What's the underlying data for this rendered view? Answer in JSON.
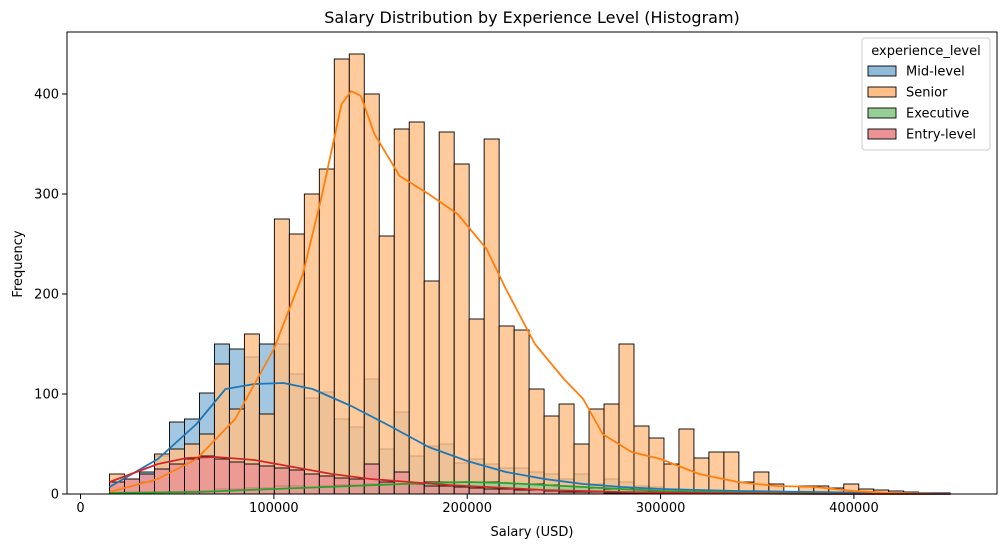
{
  "chart_data": {
    "type": "histogram",
    "title": "Salary Distribution by Experience Level (Histogram)",
    "xlabel": "Salary (USD)",
    "ylabel": "Frequency",
    "xlim": [
      -7000,
      474000
    ],
    "ylim": [
      0,
      462
    ],
    "xticks": [
      0,
      100000,
      200000,
      300000,
      400000
    ],
    "xtick_labels": [
      "0",
      "100000",
      "200000",
      "300000",
      "400000"
    ],
    "yticks": [
      0,
      100,
      200,
      300,
      400
    ],
    "ytick_labels": [
      "0",
      "100",
      "200",
      "300",
      "400"
    ],
    "grid": false,
    "legend": {
      "title": "experience_level",
      "placement": "top-right"
    },
    "bins": {
      "start": 15000,
      "width": 7750,
      "count": 56
    },
    "series": [
      {
        "name": "Mid-level",
        "color": "#1f77b4",
        "fill": "#8fbbd9",
        "counts": [
          7,
          12,
          22,
          38,
          72,
          75,
          101,
          150,
          145,
          137,
          150,
          150,
          120,
          96,
          102,
          75,
          67,
          115,
          45,
          82,
          38,
          48,
          50,
          31,
          35,
          30,
          26,
          26,
          22,
          20,
          15,
          20,
          10,
          15,
          12,
          8,
          7,
          5,
          4,
          3,
          3,
          2,
          2,
          2,
          1,
          1,
          1,
          1,
          1,
          1,
          1,
          1,
          1,
          1,
          1,
          1
        ],
        "kde": [
          [
            15000,
            7
          ],
          [
            40000,
            35
          ],
          [
            60000,
            70
          ],
          [
            75000,
            105
          ],
          [
            90000,
            110
          ],
          [
            105000,
            111
          ],
          [
            120000,
            105
          ],
          [
            140000,
            88
          ],
          [
            160000,
            68
          ],
          [
            180000,
            47
          ],
          [
            200000,
            33
          ],
          [
            220000,
            22
          ],
          [
            240000,
            15
          ],
          [
            260000,
            10
          ],
          [
            280000,
            7
          ],
          [
            300000,
            5
          ],
          [
            340000,
            3
          ],
          [
            380000,
            2
          ],
          [
            420000,
            1
          ],
          [
            450000,
            1
          ]
        ]
      },
      {
        "name": "Senior",
        "color": "#ff7f0e",
        "fill": "#ffbf86",
        "counts": [
          20,
          15,
          12,
          40,
          45,
          50,
          60,
          130,
          85,
          160,
          80,
          275,
          260,
          300,
          325,
          435,
          440,
          400,
          258,
          365,
          372,
          213,
          362,
          330,
          175,
          355,
          168,
          164,
          105,
          78,
          90,
          50,
          85,
          90,
          150,
          68,
          56,
          30,
          65,
          36,
          42,
          42,
          12,
          22,
          10,
          2,
          8,
          8,
          6,
          10,
          5,
          4,
          3,
          2,
          0,
          1
        ],
        "kde": [
          [
            15000,
            2
          ],
          [
            40000,
            15
          ],
          [
            60000,
            35
          ],
          [
            80000,
            75
          ],
          [
            100000,
            145
          ],
          [
            115000,
            220
          ],
          [
            125000,
            300
          ],
          [
            135000,
            390
          ],
          [
            140000,
            403
          ],
          [
            145000,
            398
          ],
          [
            152000,
            360
          ],
          [
            165000,
            318
          ],
          [
            180000,
            300
          ],
          [
            195000,
            280
          ],
          [
            210000,
            245
          ],
          [
            220000,
            205
          ],
          [
            235000,
            150
          ],
          [
            250000,
            115
          ],
          [
            260000,
            95
          ],
          [
            270000,
            60
          ],
          [
            285000,
            42
          ],
          [
            300000,
            35
          ],
          [
            320000,
            20
          ],
          [
            340000,
            12
          ],
          [
            360000,
            8
          ],
          [
            380000,
            7
          ],
          [
            400000,
            3
          ],
          [
            420000,
            1
          ],
          [
            450000,
            0
          ]
        ]
      },
      {
        "name": "Executive",
        "color": "#2ca02c",
        "fill": "#96cf96",
        "counts": [
          1,
          1,
          1,
          2,
          2,
          3,
          3,
          5,
          5,
          6,
          6,
          8,
          8,
          7,
          8,
          9,
          9,
          10,
          10,
          10,
          11,
          12,
          12,
          12,
          12,
          12,
          11,
          10,
          10,
          9,
          8,
          7,
          6,
          5,
          5,
          4,
          3,
          3,
          2,
          2,
          2,
          1,
          1,
          1,
          1,
          1,
          1,
          0,
          0,
          0,
          0,
          0,
          0,
          0,
          0,
          0
        ],
        "kde": [
          [
            15000,
            1
          ],
          [
            60000,
            2
          ],
          [
            100000,
            5
          ],
          [
            140000,
            8
          ],
          [
            180000,
            11
          ],
          [
            200000,
            12
          ],
          [
            220000,
            11
          ],
          [
            260000,
            7
          ],
          [
            300000,
            3
          ],
          [
            350000,
            1
          ],
          [
            400000,
            0
          ],
          [
            450000,
            0
          ]
        ]
      },
      {
        "name": "Entry-level",
        "color": "#d62728",
        "fill": "#eb9394",
        "counts": [
          12,
          15,
          20,
          25,
          30,
          35,
          38,
          35,
          32,
          30,
          28,
          26,
          24,
          20,
          18,
          16,
          15,
          30,
          12,
          22,
          10,
          8,
          8,
          7,
          6,
          5,
          5,
          4,
          4,
          3,
          2,
          2,
          2,
          1,
          1,
          1,
          1,
          1,
          0,
          0,
          0,
          0,
          0,
          0,
          0,
          0,
          0,
          0,
          0,
          0,
          0,
          0,
          0,
          0,
          0,
          0
        ],
        "kde": [
          [
            15000,
            12
          ],
          [
            40000,
            30
          ],
          [
            55000,
            36
          ],
          [
            70000,
            37
          ],
          [
            90000,
            34
          ],
          [
            110000,
            27
          ],
          [
            130000,
            20
          ],
          [
            150000,
            15
          ],
          [
            170000,
            12
          ],
          [
            190000,
            9
          ],
          [
            210000,
            7
          ],
          [
            240000,
            4
          ],
          [
            280000,
            2
          ],
          [
            320000,
            1
          ],
          [
            380000,
            0
          ],
          [
            450000,
            0
          ]
        ]
      }
    ]
  }
}
